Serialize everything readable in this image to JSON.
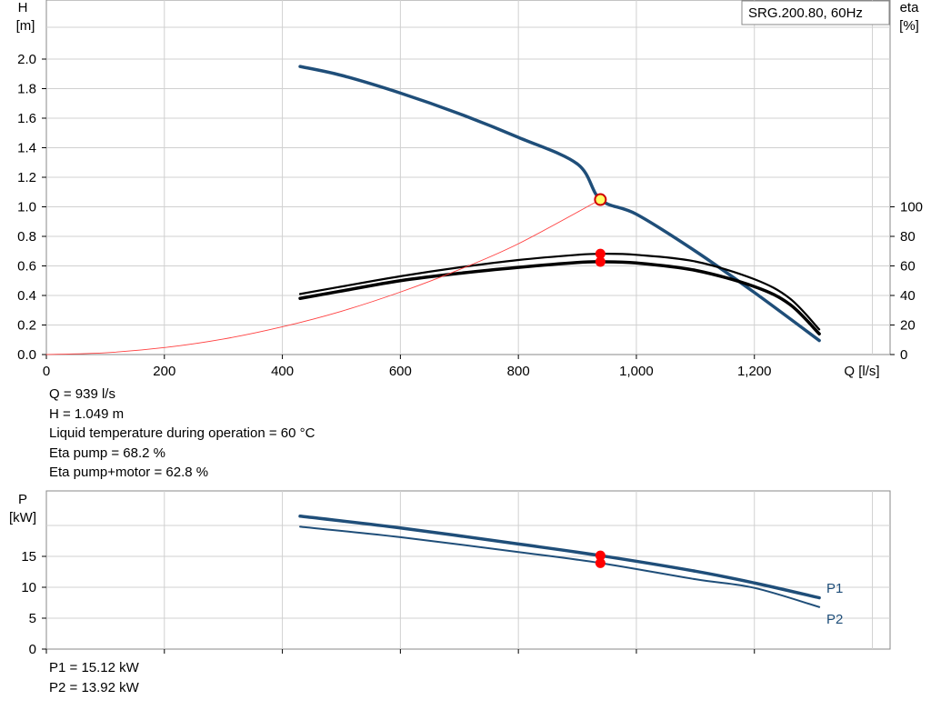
{
  "chart_data": [
    {
      "type": "line",
      "legend_box": "SRG.200.80, 60Hz",
      "y_label": "H",
      "y_unit": "[m]",
      "y2_label": "eta",
      "y2_unit": "[%]",
      "x_label": "Q [l/s]",
      "xlim": [
        0,
        1430
      ],
      "ylim": [
        0,
        2.0
      ],
      "y2lim": [
        0,
        100
      ],
      "x_ticks": [
        "0",
        "200",
        "400",
        "600",
        "800",
        "1,000",
        "1,200"
      ],
      "y_ticks": [
        "0.0",
        "0.2",
        "0.4",
        "0.6",
        "0.8",
        "1.0",
        "1.2",
        "1.4",
        "1.6",
        "1.8",
        "2.0"
      ],
      "y2_ticks": [
        "0",
        "20",
        "40",
        "60",
        "80",
        "100"
      ],
      "grid": true,
      "series": [
        {
          "axis": "H",
          "color": "#1f4e79",
          "x": [
            430,
            500,
            600,
            700,
            800,
            900,
            939,
            1000,
            1100,
            1200,
            1310
          ],
          "y": [
            1.95,
            1.89,
            1.77,
            1.63,
            1.47,
            1.29,
            1.049,
            0.95,
            0.7,
            0.42,
            0.095
          ]
        },
        {
          "axis": "eta",
          "color": "#000000",
          "x": [
            430,
            500,
            600,
            700,
            800,
            900,
            939,
            1000,
            1100,
            1200,
            1260,
            1310
          ],
          "y": [
            41,
            46,
            53,
            59,
            64,
            67.5,
            68.2,
            67.5,
            63,
            51,
            38,
            17
          ]
        },
        {
          "axis": "eta",
          "color": "#000000",
          "x": [
            430,
            500,
            600,
            700,
            800,
            900,
            939,
            1000,
            1100,
            1200,
            1260,
            1310
          ],
          "y": [
            38,
            43,
            50,
            55,
            59,
            62.3,
            62.8,
            62,
            57,
            46,
            34,
            14
          ]
        },
        {
          "axis": "H",
          "color": "#ff4040",
          "x": [
            0,
            100,
            200,
            300,
            400,
            500,
            600,
            700,
            800,
            939
          ],
          "y": [
            0,
            0.012,
            0.047,
            0.105,
            0.188,
            0.293,
            0.423,
            0.575,
            0.75,
            1.049
          ]
        }
      ],
      "operating_point": {
        "Q": 939,
        "H": 1.049,
        "eta_pump": 68.2,
        "eta_total": 62.8
      }
    },
    {
      "type": "line",
      "y_label": "P",
      "y_unit": "[kW]",
      "xlim": [
        0,
        1430
      ],
      "ylim": [
        0,
        22
      ],
      "y_ticks": [
        "0",
        "5",
        "10",
        "15"
      ],
      "grid": true,
      "series": [
        {
          "name": "P1",
          "color": "#1f4e79",
          "x": [
            430,
            600,
            800,
            939,
            1100,
            1200,
            1310
          ],
          "y": [
            21.5,
            19.6,
            17.0,
            15.12,
            12.6,
            10.7,
            8.3
          ]
        },
        {
          "name": "P2",
          "color": "#1f4e79",
          "x": [
            430,
            600,
            800,
            939,
            1100,
            1200,
            1310
          ],
          "y": [
            19.8,
            18.1,
            15.7,
            13.92,
            11.3,
            9.9,
            6.8
          ]
        }
      ],
      "operating_point": {
        "Q": 939,
        "P1": 15.12,
        "P2": 13.92
      }
    }
  ],
  "info_top": {
    "q": "Q = 939 l/s",
    "h": "H = 1.049 m",
    "temp": "Liquid temperature during operation = 60 °C",
    "eta_pump": "Eta pump = 68.2 %",
    "eta_total": "Eta pump+motor = 62.8 %"
  },
  "info_bottom": {
    "p1": "P1 = 15.12 kW",
    "p2": "P2 = 13.92 kW"
  },
  "colors": {
    "curve_blue": "#1f4e79",
    "eta_black": "#000000",
    "system_red": "#ff4040",
    "grid": "#d0d0d0",
    "point_red": "#ff0000",
    "point_yellow": "#ffff66"
  }
}
